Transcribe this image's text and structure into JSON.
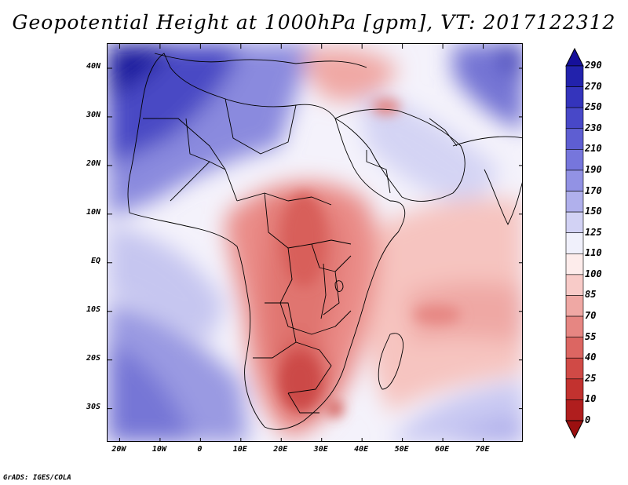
{
  "title": "Geopotential Height at 1000hPa [gpm], VT: 2017122312",
  "credit": "GrADS: IGES/COLA",
  "map": {
    "variable": "Geopotential Height at 1000hPa",
    "units": "gpm",
    "valid_time": "2017122312",
    "projection": "latlon",
    "lon_range": [
      -23,
      80
    ],
    "lat_range": [
      -37,
      45
    ],
    "lat_labels": [
      {
        "value": 40,
        "text": "40N"
      },
      {
        "value": 30,
        "text": "30N"
      },
      {
        "value": 20,
        "text": "20N"
      },
      {
        "value": 10,
        "text": "10N"
      },
      {
        "value": 0,
        "text": "EQ"
      },
      {
        "value": -10,
        "text": "10S"
      },
      {
        "value": -20,
        "text": "20S"
      },
      {
        "value": -30,
        "text": "30S"
      }
    ],
    "lon_labels": [
      {
        "value": -20,
        "text": "20W"
      },
      {
        "value": -10,
        "text": "10W"
      },
      {
        "value": 0,
        "text": "0"
      },
      {
        "value": 10,
        "text": "10E"
      },
      {
        "value": 20,
        "text": "20E"
      },
      {
        "value": 30,
        "text": "30E"
      },
      {
        "value": 40,
        "text": "40E"
      },
      {
        "value": 50,
        "text": "50E"
      },
      {
        "value": 60,
        "text": "60E"
      },
      {
        "value": 70,
        "text": "70E"
      }
    ]
  },
  "colorbar": {
    "labels": [
      "290",
      "270",
      "250",
      "230",
      "210",
      "190",
      "170",
      "150",
      "125",
      "110",
      "100",
      "85",
      "70",
      "55",
      "40",
      "25",
      "10",
      "0"
    ],
    "colors": [
      "#16109a",
      "#2222ac",
      "#3434bc",
      "#4848c8",
      "#5e5ed2",
      "#7676dc",
      "#9292e4",
      "#b0b0ec",
      "#d2d2f4",
      "#f0f0fb",
      "#fdeceb",
      "#f8cbc8",
      "#efa8a4",
      "#e68682",
      "#dc6662",
      "#d04a46",
      "#c2322f",
      "#b01e1e",
      "#9c1010"
    ]
  }
}
